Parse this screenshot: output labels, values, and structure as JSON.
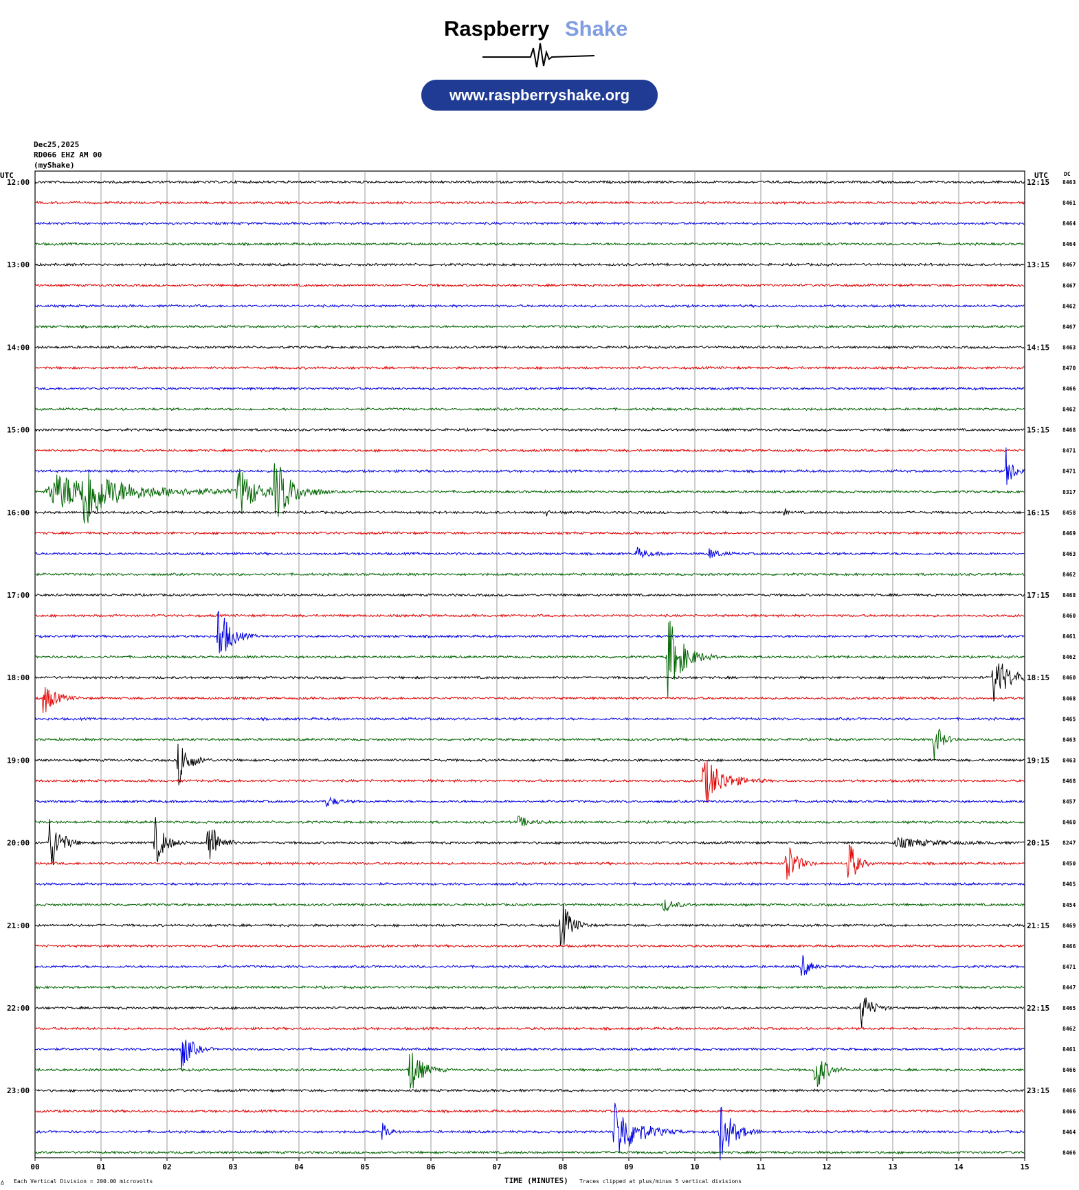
{
  "logo": {
    "brand_first": "Raspberry",
    "brand_second": "Shake",
    "url": "www.raspberryshake.org",
    "brand_color": "#000000",
    "accent_color": "#7f9de0",
    "pill_color": "#1f3b94"
  },
  "header": {
    "date": "Dec25,2025",
    "station": "RD066 EHZ AM 00",
    "source": "(myShake)",
    "left_utc": "UTC",
    "right_utc": "UTC",
    "dc_label": "DC"
  },
  "footer": {
    "scale_note": "Each Vertical Division =  200.00 microvolts",
    "xlabel": "TIME (MINUTES)",
    "clip_note": "Traces clipped at plus/minus 5 vertical divisions",
    "corner_glyph": "∆"
  },
  "chart_data": {
    "type": "line",
    "title": "",
    "xlabel": "TIME (MINUTES)",
    "xlim": [
      0,
      15
    ],
    "x_ticks": [
      "00",
      "01",
      "02",
      "03",
      "04",
      "05",
      "06",
      "07",
      "08",
      "09",
      "10",
      "11",
      "12",
      "13",
      "14",
      "15"
    ],
    "trace_colors": [
      "#000000",
      "#e00000",
      "#0000e0",
      "#006400"
    ],
    "grid": true,
    "rows": [
      {
        "left": "12:00",
        "right": "12:15",
        "dc": "8463"
      },
      {
        "left": "",
        "right": "",
        "dc": "8461"
      },
      {
        "left": "",
        "right": "",
        "dc": "8464"
      },
      {
        "left": "",
        "right": "",
        "dc": "8464"
      },
      {
        "left": "13:00",
        "right": "13:15",
        "dc": "8467"
      },
      {
        "left": "",
        "right": "",
        "dc": "8467"
      },
      {
        "left": "",
        "right": "",
        "dc": "8462"
      },
      {
        "left": "",
        "right": "",
        "dc": "8467"
      },
      {
        "left": "14:00",
        "right": "14:15",
        "dc": "8463"
      },
      {
        "left": "",
        "right": "",
        "dc": "8470"
      },
      {
        "left": "",
        "right": "",
        "dc": "8466"
      },
      {
        "left": "",
        "right": "",
        "dc": "8462"
      },
      {
        "left": "15:00",
        "right": "15:15",
        "dc": "8468"
      },
      {
        "left": "",
        "right": "",
        "dc": "8471"
      },
      {
        "left": "",
        "right": "",
        "dc": "8471"
      },
      {
        "left": "",
        "right": "",
        "dc": "8317"
      },
      {
        "left": "16:00",
        "right": "16:15",
        "dc": "8458"
      },
      {
        "left": "",
        "right": "",
        "dc": "8469"
      },
      {
        "left": "",
        "right": "",
        "dc": "8463"
      },
      {
        "left": "",
        "right": "",
        "dc": "8462"
      },
      {
        "left": "17:00",
        "right": "17:15",
        "dc": "8468"
      },
      {
        "left": "",
        "right": "",
        "dc": "8460"
      },
      {
        "left": "",
        "right": "",
        "dc": "8461"
      },
      {
        "left": "",
        "right": "",
        "dc": "8462"
      },
      {
        "left": "18:00",
        "right": "18:15",
        "dc": "8460"
      },
      {
        "left": "",
        "right": "",
        "dc": "8468"
      },
      {
        "left": "",
        "right": "",
        "dc": "8465"
      },
      {
        "left": "",
        "right": "",
        "dc": "8463"
      },
      {
        "left": "19:00",
        "right": "19:15",
        "dc": "8463"
      },
      {
        "left": "",
        "right": "",
        "dc": "8468"
      },
      {
        "left": "",
        "right": "",
        "dc": "8457"
      },
      {
        "left": "",
        "right": "",
        "dc": "8460"
      },
      {
        "left": "20:00",
        "right": "20:15",
        "dc": "8247"
      },
      {
        "left": "",
        "right": "",
        "dc": "8450"
      },
      {
        "left": "",
        "right": "",
        "dc": "8465"
      },
      {
        "left": "",
        "right": "",
        "dc": "8454"
      },
      {
        "left": "21:00",
        "right": "21:15",
        "dc": "8469"
      },
      {
        "left": "",
        "right": "",
        "dc": "8466"
      },
      {
        "left": "",
        "right": "",
        "dc": "8471"
      },
      {
        "left": "",
        "right": "",
        "dc": "8447"
      },
      {
        "left": "22:00",
        "right": "22:15",
        "dc": "8465"
      },
      {
        "left": "",
        "right": "",
        "dc": "8462"
      },
      {
        "left": "",
        "right": "",
        "dc": "8461"
      },
      {
        "left": "",
        "right": "",
        "dc": "8466"
      },
      {
        "left": "23:00",
        "right": "23:15",
        "dc": "8466"
      },
      {
        "left": "",
        "right": "",
        "dc": "8466"
      },
      {
        "left": "",
        "right": "",
        "dc": "8464"
      },
      {
        "left": "",
        "right": "",
        "dc": "8466"
      }
    ],
    "events": [
      {
        "row": 15,
        "t": 0.15,
        "amp": 30,
        "dur": 4.2
      },
      {
        "row": 15,
        "t": 0.7,
        "amp": 55,
        "dur": 0.9
      },
      {
        "row": 15,
        "t": 3.05,
        "amp": 45,
        "dur": 0.8
      },
      {
        "row": 15,
        "t": 3.6,
        "amp": 55,
        "dur": 0.9
      },
      {
        "row": 14,
        "t": 14.7,
        "amp": 40,
        "dur": 0.35
      },
      {
        "row": 16,
        "t": 11.35,
        "amp": 12,
        "dur": 0.1
      },
      {
        "row": 16,
        "t": 7.75,
        "amp": 12,
        "dur": 0.1
      },
      {
        "row": 18,
        "t": 9.1,
        "amp": 10,
        "dur": 0.6
      },
      {
        "row": 18,
        "t": 10.2,
        "amp": 10,
        "dur": 0.5
      },
      {
        "row": 22,
        "t": 2.75,
        "amp": 60,
        "dur": 0.6
      },
      {
        "row": 23,
        "t": 9.55,
        "amp": 75,
        "dur": 0.8
      },
      {
        "row": 24,
        "t": 14.5,
        "amp": 45,
        "dur": 0.8
      },
      {
        "row": 25,
        "t": 0.1,
        "amp": 30,
        "dur": 0.6
      },
      {
        "row": 27,
        "t": 13.6,
        "amp": 40,
        "dur": 0.4
      },
      {
        "row": 28,
        "t": 2.15,
        "amp": 45,
        "dur": 0.55
      },
      {
        "row": 29,
        "t": 10.1,
        "amp": 45,
        "dur": 1.0
      },
      {
        "row": 32,
        "t": 0.2,
        "amp": 55,
        "dur": 0.55
      },
      {
        "row": 32,
        "t": 1.8,
        "amp": 45,
        "dur": 0.5
      },
      {
        "row": 32,
        "t": 2.6,
        "amp": 50,
        "dur": 0.5
      },
      {
        "row": 32,
        "t": 13.0,
        "amp": 8,
        "dur": 2.0
      },
      {
        "row": 33,
        "t": 11.35,
        "amp": 50,
        "dur": 0.5
      },
      {
        "row": 33,
        "t": 12.3,
        "amp": 55,
        "dur": 0.4
      },
      {
        "row": 36,
        "t": 7.95,
        "amp": 50,
        "dur": 0.5
      },
      {
        "row": 38,
        "t": 11.6,
        "amp": 25,
        "dur": 0.4
      },
      {
        "row": 40,
        "t": 12.5,
        "amp": 35,
        "dur": 0.5
      },
      {
        "row": 42,
        "t": 2.2,
        "amp": 40,
        "dur": 0.5
      },
      {
        "row": 43,
        "t": 5.65,
        "amp": 45,
        "dur": 0.6
      },
      {
        "row": 43,
        "t": 11.8,
        "amp": 45,
        "dur": 0.5
      },
      {
        "row": 46,
        "t": 8.75,
        "amp": 55,
        "dur": 1.1
      },
      {
        "row": 46,
        "t": 10.35,
        "amp": 55,
        "dur": 0.7
      },
      {
        "row": 46,
        "t": 5.25,
        "amp": 18,
        "dur": 0.3
      },
      {
        "row": 35,
        "t": 9.5,
        "amp": 12,
        "dur": 0.6
      },
      {
        "row": 31,
        "t": 7.3,
        "amp": 10,
        "dur": 0.6
      },
      {
        "row": 30,
        "t": 4.4,
        "amp": 10,
        "dur": 0.5
      }
    ]
  }
}
